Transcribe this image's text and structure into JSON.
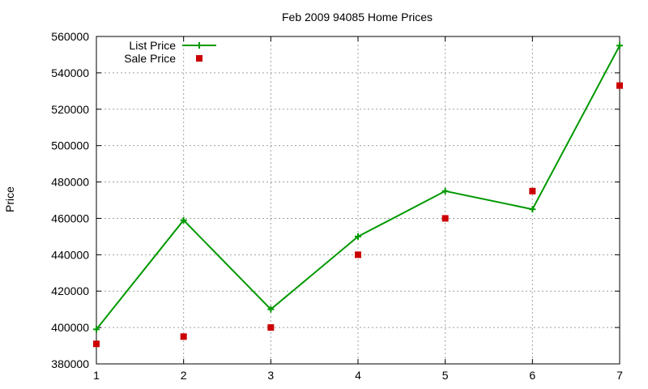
{
  "chart_data": {
    "type": "line",
    "title": "Feb 2009 94085 Home Prices",
    "xlabel": "",
    "ylabel": "Price",
    "x": [
      1,
      2,
      3,
      4,
      5,
      6,
      7
    ],
    "xlim": [
      1,
      7
    ],
    "ylim": [
      380000,
      560000
    ],
    "x_ticks": [
      "1",
      "2",
      "3",
      "4",
      "5",
      "6",
      "7"
    ],
    "y_ticks": [
      "380000",
      "400000",
      "420000",
      "440000",
      "460000",
      "480000",
      "500000",
      "520000",
      "540000",
      "560000"
    ],
    "grid": true,
    "legend_position": "top-left",
    "series": [
      {
        "name": "List Price",
        "style": "line-with-plus-markers",
        "color": "#009900",
        "values": [
          399000,
          459000,
          410000,
          450000,
          475000,
          465000,
          555000
        ]
      },
      {
        "name": "Sale Price",
        "style": "square-markers",
        "color": "#cc0000",
        "values": [
          391000,
          395000,
          400000,
          440000,
          460000,
          475000,
          533000
        ]
      }
    ]
  }
}
